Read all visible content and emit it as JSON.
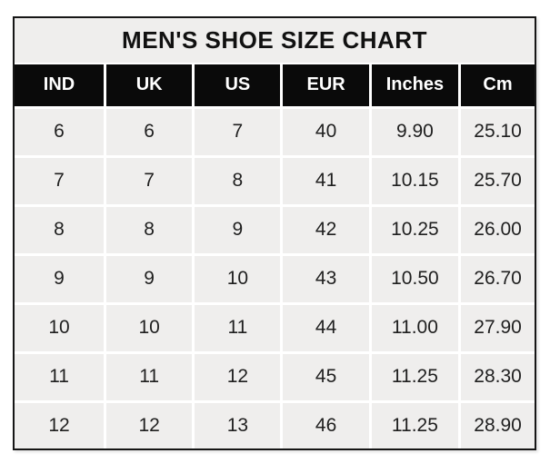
{
  "page": {
    "title": "MEN'S SHOE SIZE CHART"
  },
  "chart_data": {
    "type": "table",
    "title": "MEN'S SHOE SIZE CHART",
    "columns": [
      "IND",
      "UK",
      "US",
      "EUR",
      "Inches",
      "Cm"
    ],
    "rows": [
      [
        "6",
        "6",
        "7",
        "40",
        "9.90",
        "25.10"
      ],
      [
        "7",
        "7",
        "8",
        "41",
        "10.15",
        "25.70"
      ],
      [
        "8",
        "8",
        "9",
        "42",
        "10.25",
        "26.00"
      ],
      [
        "9",
        "9",
        "10",
        "43",
        "10.50",
        "26.70"
      ],
      [
        "10",
        "10",
        "11",
        "44",
        "11.00",
        "27.90"
      ],
      [
        "11",
        "11",
        "12",
        "45",
        "11.25",
        "28.30"
      ],
      [
        "12",
        "12",
        "13",
        "46",
        "11.25",
        "28.90"
      ]
    ]
  },
  "colors": {
    "header_bg": "#0a0a0a",
    "header_text": "#ffffff",
    "cell_bg": "#efeeed",
    "grid_line": "#ffffff",
    "outer_border": "#161616",
    "cell_text": "#1f1f1f",
    "page_bg": "#ffffff"
  }
}
